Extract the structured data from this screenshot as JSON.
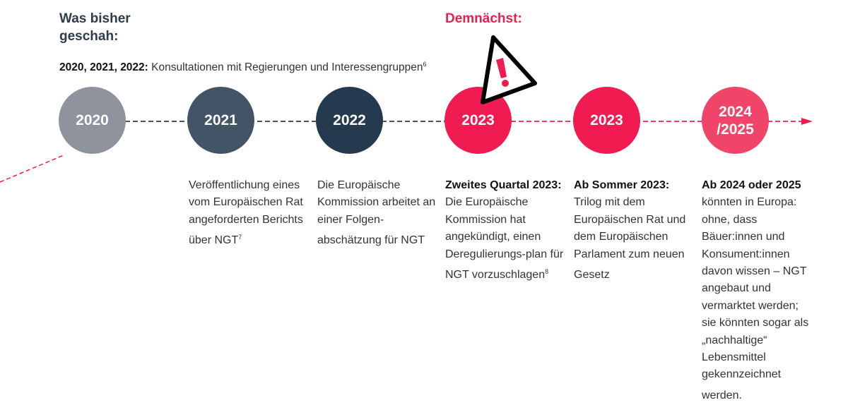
{
  "header": {
    "past_title": "Was bisher geschah:",
    "next_title": "Demnächst:"
  },
  "consultation": {
    "years": "2020, 2021, 2022:",
    "text": " Konsultationen mit Regierungen und Interessengruppen",
    "footnote": "6"
  },
  "colors": {
    "gray": "#8e939d",
    "slate": "#435466",
    "navy": "#253a4e",
    "red": "#ef1b51",
    "pink": "#f04468"
  },
  "warning_icon": "warning-triangle-icon",
  "milestones": [
    {
      "year": "2020",
      "color": "#8e939d",
      "bold": "",
      "text": "",
      "footnote": ""
    },
    {
      "year": "2021",
      "color": "#435466",
      "bold": "",
      "text": "Veröffentlichung eines vom Europäischen Rat angeforderten Berichts über NGT",
      "footnote": "7"
    },
    {
      "year": "2022",
      "color": "#253a4e",
      "bold": "",
      "text": "Die Europäische Kommission arbeitet an einer Folgen-abschätzung für NGT",
      "footnote": ""
    },
    {
      "year": "2023",
      "color": "#ef1b51",
      "bold": "Zweites Quartal 2023:",
      "text": " Die Europäische Kommission hat angekündigt, einen Deregulierungs-plan für NGT vorzuschlagen",
      "footnote": "8"
    },
    {
      "year": "2023",
      "color": "#ef1b51",
      "bold": "Ab Sommer 2023:",
      "text": " Trilog mit dem Europäischen Rat und dem Europäischen Parlament zum neuen Gesetz",
      "footnote": ""
    },
    {
      "year": "2024 /2025",
      "color": "#f04468",
      "bold": "Ab 2024 oder 2025",
      "text": " könnten in Europa: ohne, dass Bäuer:innen und Konsument:innen davon wissen – NGT angebaut und vermarktet werden; sie könnten sogar als „nachhaltige“ Lebensmittel gekennzeichnet werden.",
      "footnote": ""
    }
  ]
}
